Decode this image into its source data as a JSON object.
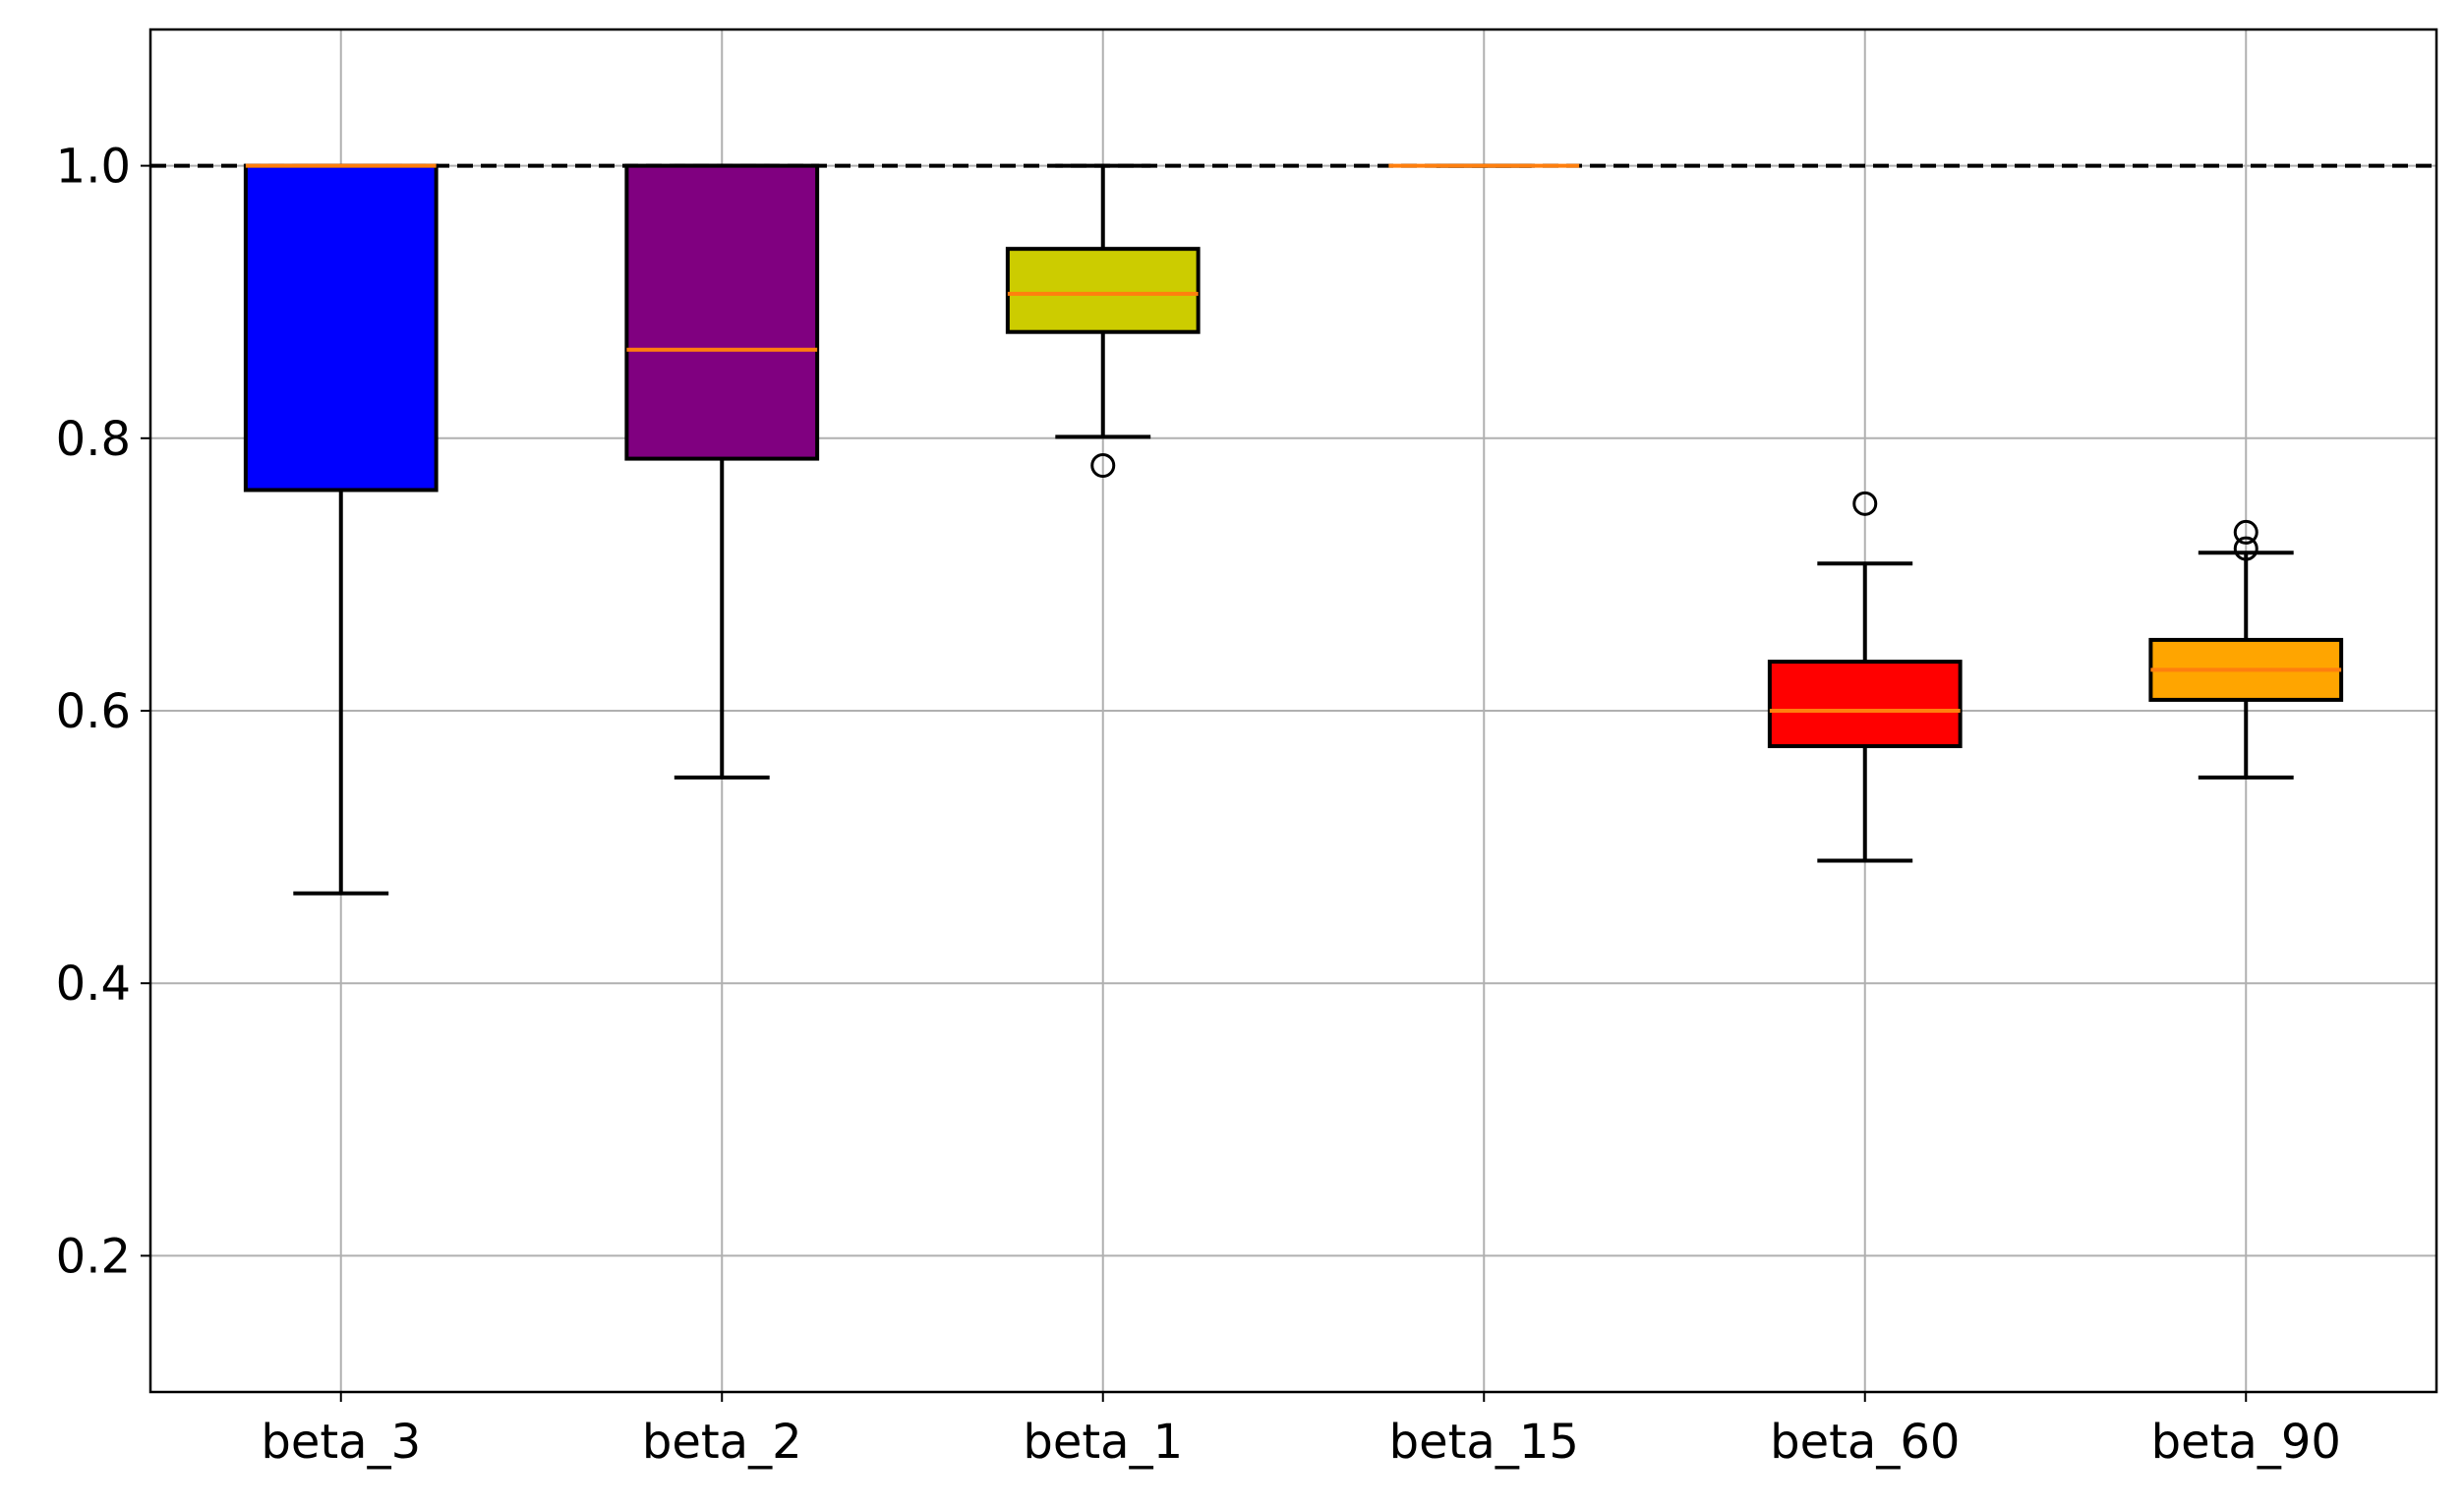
{
  "chart_data": {
    "type": "box",
    "title": "",
    "xlabel": "",
    "ylabel": "",
    "ylim": [
      0.1,
      1.1
    ],
    "yticks": [
      0.2,
      0.4,
      0.6,
      0.8,
      1.0
    ],
    "ytick_labels": [
      "0.2",
      "0.4",
      "0.6",
      "0.8",
      "1.0"
    ],
    "grid": true,
    "reference_line": {
      "y": 1.0,
      "style": "dashed",
      "color": "#000000"
    },
    "median_color": "#ff7f0e",
    "categories": [
      "beta_3",
      "beta_2",
      "beta_1",
      "beta_15",
      "beta_60",
      "beta_90"
    ],
    "boxes": [
      {
        "name": "beta_3",
        "color": "#0000ff",
        "whisker_low": 0.466,
        "q1": 0.762,
        "median": 1.0,
        "q3": 1.0,
        "whisker_high": 1.0,
        "outliers": []
      },
      {
        "name": "beta_2",
        "color": "#800080",
        "whisker_low": 0.551,
        "q1": 0.785,
        "median": 0.865,
        "q3": 1.0,
        "whisker_high": 1.0,
        "outliers": []
      },
      {
        "name": "beta_1",
        "color": "#cccc00",
        "whisker_low": 0.801,
        "q1": 0.878,
        "median": 0.906,
        "q3": 0.939,
        "whisker_high": 1.0,
        "outliers": [
          0.78
        ]
      },
      {
        "name": "beta_15",
        "color": "#ffa500",
        "whisker_low": 1.0,
        "q1": 1.0,
        "median": 1.0,
        "q3": 1.0,
        "whisker_high": 1.0,
        "outliers": []
      },
      {
        "name": "beta_60",
        "color": "#ff0000",
        "whisker_low": 0.49,
        "q1": 0.574,
        "median": 0.6,
        "q3": 0.636,
        "whisker_high": 0.708,
        "outliers": [
          0.752
        ]
      },
      {
        "name": "beta_90",
        "color": "#ffa500",
        "whisker_low": 0.551,
        "q1": 0.608,
        "median": 0.63,
        "q3": 0.652,
        "whisker_high": 0.716,
        "outliers": [
          0.731,
          0.719
        ]
      }
    ]
  }
}
